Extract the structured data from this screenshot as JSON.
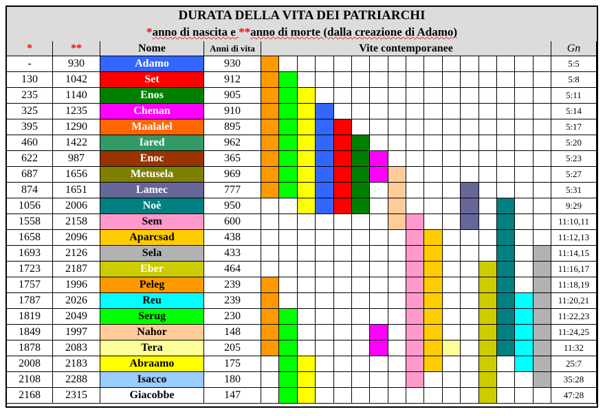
{
  "title": {
    "line1": "DURATA DELLA VITA DEI PATRIARCHI",
    "line2_star1": "*",
    "line2_part1": "anno di nascita e ",
    "line2_star2": "**",
    "line2_part2": "anno di morte (dalla creazione di Adamo)"
  },
  "headers": {
    "birth": "*",
    "death": "**",
    "name": "Nome",
    "years": "Anni di vita",
    "contemporary": "Vite contemporanee",
    "gn": "Gn"
  },
  "colors": {
    "white": "#ffffff",
    "Adamo": "#3366ff",
    "Set": "#ff0000",
    "Enos": "#008000",
    "Chenan": "#ff00ff",
    "Maalalel": "#ff6600",
    "Iared": "#339966",
    "Enoc": "#993300",
    "Metusela": "#808000",
    "Lamec": "#666699",
    "Noe": "#008080",
    "Sem": "#ff99cc",
    "Aparcsad": "#ffcc00",
    "Sela": "#b2b2b2",
    "Eber": "#cccc00",
    "Peleg": "#ff9900",
    "Reu": "#00ffff",
    "Serug": "#00ff00",
    "Nahor": "#ffcc99",
    "Tera": "#ffff99",
    "Abraamo": "#ffff00",
    "Isacco": "#99ccff",
    "Giacobbe": "#ffffff"
  },
  "patriarchs": [
    {
      "birth": "-",
      "death": "930",
      "name": "Adamo",
      "years": "930",
      "gn": "5:5",
      "color": "#3366ff",
      "text_color": "#ffffff",
      "cells": [
        0
      ]
    },
    {
      "birth": "130",
      "death": "1042",
      "name": "Set",
      "years": "912",
      "gn": "5:8",
      "color": "#ff0000",
      "text_color": "#ffffff",
      "cells": [
        0,
        1
      ]
    },
    {
      "birth": "235",
      "death": "1140",
      "name": "Enos",
      "years": "905",
      "gn": "5:11",
      "color": "#008000",
      "text_color": "#ffffff",
      "cells": [
        0,
        1,
        2
      ]
    },
    {
      "birth": "325",
      "death": "1235",
      "name": "Chenan",
      "years": "910",
      "gn": "5:14",
      "color": "#ff00ff",
      "text_color": "#ffffff",
      "cells": [
        0,
        1,
        2,
        3
      ]
    },
    {
      "birth": "395",
      "death": "1290",
      "name": "Maalalel",
      "years": "895",
      "gn": "5:17",
      "color": "#ff6600",
      "text_color": "#ffffff",
      "cells": [
        0,
        1,
        2,
        3,
        4
      ]
    },
    {
      "birth": "460",
      "death": "1422",
      "name": "Iared",
      "years": "962",
      "gn": "5:20",
      "color": "#339966",
      "text_color": "#ffffff",
      "cells": [
        0,
        1,
        2,
        3,
        4,
        5
      ]
    },
    {
      "birth": "622",
      "death": "987",
      "name": "Enoc",
      "years": "365",
      "gn": "5:23",
      "color": "#993300",
      "text_color": "#ffffff",
      "cells": [
        0,
        1,
        2,
        3,
        4,
        5,
        6
      ]
    },
    {
      "birth": "687",
      "death": "1656",
      "name": "Metusela",
      "years": "969",
      "gn": "5:27",
      "color": "#808000",
      "text_color": "#ffffff",
      "cells": [
        0,
        1,
        2,
        3,
        4,
        5,
        6,
        7
      ]
    },
    {
      "birth": "874",
      "death": "1651",
      "name": "Lamec",
      "years": "777",
      "gn": "5:31",
      "color": "#666699",
      "text_color": "#ffffff",
      "cells": [
        0,
        1,
        2,
        3,
        4,
        5,
        7,
        11
      ]
    },
    {
      "birth": "1056",
      "death": "2006",
      "name": "Noè",
      "years": "950",
      "gn": "9:29",
      "color": "#008080",
      "text_color": "#ffffff",
      "cells": [
        2,
        3,
        4,
        5,
        7,
        11,
        13
      ]
    },
    {
      "birth": "1558",
      "death": "2158",
      "name": "Sem",
      "years": "600",
      "gn": "11:10,11",
      "color": "#ff99cc",
      "text_color": "#000000",
      "cells": [
        7,
        8,
        11,
        13
      ]
    },
    {
      "birth": "1658",
      "death": "2096",
      "name": "Aparcsad",
      "years": "438",
      "gn": "11:12,13",
      "color": "#ffcc00",
      "text_color": "#000000",
      "cells": [
        8,
        9,
        13
      ]
    },
    {
      "birth": "1693",
      "death": "2126",
      "name": "Sela",
      "years": "433",
      "gn": "11:14,15",
      "color": "#b2b2b2",
      "text_color": "#000000",
      "cells": [
        8,
        9,
        13,
        15
      ]
    },
    {
      "birth": "1723",
      "death": "2187",
      "name": "Eber",
      "years": "464",
      "gn": "11:16,17",
      "color": "#cccc00",
      "text_color": "#ffffff",
      "cells": [
        8,
        9,
        12,
        13,
        15
      ]
    },
    {
      "birth": "1757",
      "death": "1996",
      "name": "Peleg",
      "years": "239",
      "gn": "11:18,19",
      "color": "#ff9900",
      "text_color": "#000000",
      "cells": [
        0,
        8,
        9,
        12,
        13,
        15
      ]
    },
    {
      "birth": "1787",
      "death": "2026",
      "name": "Reu",
      "years": "239",
      "gn": "11:20,21",
      "color": "#00ffff",
      "text_color": "#000000",
      "cells": [
        0,
        8,
        9,
        12,
        13,
        14,
        15
      ]
    },
    {
      "birth": "1819",
      "death": "2049",
      "name": "Serug",
      "years": "230",
      "gn": "11:22,23",
      "color": "#00ff00",
      "text_color": "#000000",
      "cells": [
        0,
        1,
        8,
        9,
        12,
        13,
        14,
        15
      ]
    },
    {
      "birth": "1849",
      "death": "1997",
      "name": "Nahor",
      "years": "148",
      "gn": "11:24,25",
      "color": "#ffcc99",
      "text_color": "#000000",
      "cells": [
        0,
        1,
        6,
        8,
        9,
        12,
        13,
        14,
        15
      ]
    },
    {
      "birth": "1878",
      "death": "2083",
      "name": "Tera",
      "years": "205",
      "gn": "11:32",
      "color": "#ffff99",
      "text_color": "#000000",
      "cells": [
        0,
        1,
        6,
        8,
        9,
        10,
        12,
        13,
        14,
        15
      ]
    },
    {
      "birth": "2008",
      "death": "2183",
      "name": "Abraamo",
      "years": "175",
      "gn": "25:7",
      "color": "#ffff00",
      "text_color": "#000000",
      "cells": [
        1,
        2,
        8,
        9,
        12,
        14,
        15
      ]
    },
    {
      "birth": "2108",
      "death": "2288",
      "name": "Isacco",
      "years": "180",
      "gn": "35:28",
      "color": "#99ccff",
      "text_color": "#000000",
      "cells": [
        1,
        2,
        8,
        12,
        15
      ]
    },
    {
      "birth": "2168",
      "death": "2315",
      "name": "Giacobbe",
      "years": "147",
      "gn": "47:28",
      "color": "#ffffff",
      "text_color": "#000000",
      "cells": [
        1,
        2,
        12
      ]
    }
  ],
  "contemporary_columns": [
    "Peleg",
    "Serug",
    "Abraamo",
    "Adamo",
    "Set",
    "Enos",
    "Chenan",
    "Nahor",
    "Sem",
    "Aparcsad",
    "Tera",
    "Lamec",
    "Eber",
    "Noe",
    "Reu",
    "Sela"
  ]
}
